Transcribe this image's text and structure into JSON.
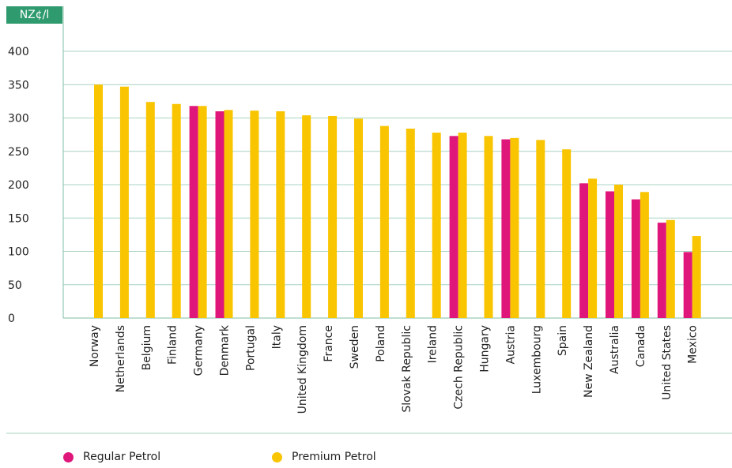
{
  "unit_label": "NZ¢/l",
  "legend": [
    {
      "label": "Regular Petrol",
      "color": "#e0177a"
    },
    {
      "label": "Premium Petrol",
      "color": "#f9c400"
    }
  ],
  "colors": {
    "axis": "#7fbfa4",
    "grid": "#a9d4c1",
    "badge": "#2e9a6e",
    "text": "#222222"
  },
  "chart_data": {
    "type": "bar",
    "title": "",
    "xlabel": "",
    "ylabel": "NZ¢/l",
    "ylim": [
      0,
      400
    ],
    "yticks": [
      0,
      50,
      100,
      150,
      200,
      250,
      300,
      350,
      400
    ],
    "grid": true,
    "legend_position": "bottom",
    "categories": [
      "Norway",
      "Netherlands",
      "Belgium",
      "Finland",
      "Germany",
      "Denmark",
      "Portugal",
      "Italy",
      "United Kingdom",
      "France",
      "Sweden",
      "Poland",
      "Slovak Republic",
      "Ireland",
      "Czech Republic",
      "Hungary",
      "Austria",
      "Luxembourg",
      "Spain",
      "New Zealand",
      "Australia",
      "Canada",
      "United States",
      "Mexico"
    ],
    "series": [
      {
        "name": "Regular Petrol",
        "color": "#e0177a",
        "values": [
          null,
          null,
          null,
          null,
          318,
          310,
          null,
          null,
          null,
          null,
          null,
          null,
          null,
          null,
          273,
          null,
          268,
          null,
          null,
          202,
          190,
          178,
          143,
          99
        ]
      },
      {
        "name": "Premium Petrol",
        "color": "#f9c400",
        "values": [
          350,
          347,
          324,
          321,
          318,
          312,
          311,
          310,
          304,
          303,
          299,
          288,
          284,
          278,
          278,
          273,
          270,
          267,
          253,
          209,
          200,
          189,
          147,
          123
        ]
      }
    ]
  }
}
